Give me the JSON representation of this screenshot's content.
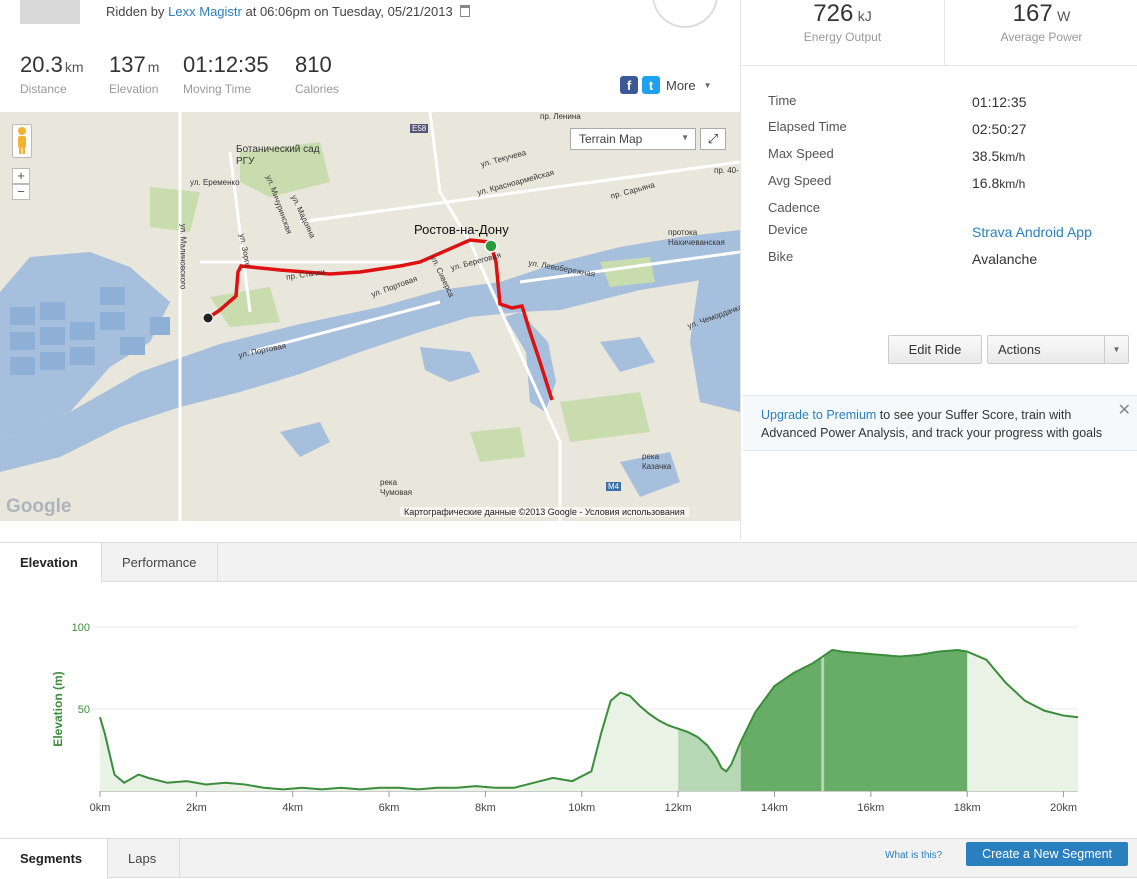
{
  "header": {
    "ridden_prefix": "Ridden by",
    "athlete": "Lexx Magistr",
    "ridden_suffix": "at 06:06pm on Tuesday, 05/21/2013"
  },
  "stats": [
    {
      "value": "20.3",
      "unit": "km",
      "label": "Distance"
    },
    {
      "value": "137",
      "unit": "m",
      "label": "Elevation"
    },
    {
      "value": "01:12:35",
      "unit": "",
      "label": "Moving Time"
    },
    {
      "value": "810",
      "unit": "",
      "label": "Calories"
    }
  ],
  "share": {
    "more": "More"
  },
  "energy": {
    "value": "726",
    "unit": "kJ",
    "label": "Energy Output"
  },
  "power": {
    "value": "167",
    "unit": "W",
    "label": "Average Power"
  },
  "details": [
    {
      "label": "Time",
      "value": "01:12:35",
      "unit": ""
    },
    {
      "label": "Elapsed Time",
      "value": "02:50:27",
      "unit": ""
    },
    {
      "label": "Max Speed",
      "value": "38.5",
      "unit": "km/h"
    },
    {
      "label": "Avg Speed",
      "value": "16.8",
      "unit": "km/h"
    },
    {
      "label": "Cadence",
      "value": "",
      "unit": ""
    },
    {
      "label": "Device",
      "value": "Strava Android App",
      "unit": ""
    },
    {
      "label": "Bike",
      "value": "Avalanche",
      "unit": ""
    }
  ],
  "buttons": {
    "edit": "Edit Ride",
    "actions": "Actions"
  },
  "upgrade": {
    "link": "Upgrade to Premium",
    "text": " to see your Suffer Score, train with Advanced Power Analysis, and track your progress with goals"
  },
  "map": {
    "type_label": "Terrain Map",
    "copyright": "Картографические данные ©2013 Google - Условия использования",
    "logo": "Google",
    "labels": {
      "city": "Ростов-на-Дону",
      "garden": "Ботанический сад РГУ",
      "eremenko": "ул. Еременко",
      "michurin": "ул. Мичуринская",
      "madoyan": "ул. Мадояна",
      "malinovsky": "ул. Малиновского",
      "zorge": "ул. Зорге",
      "stachki": "пр. Стачки",
      "portovaya1": "ул. Портовая",
      "portovaya2": "ул. Портовая",
      "sivers": "ул. Сиверса",
      "beregovaya": "ул. Береговая",
      "levober": "ул. Левобережная",
      "tekucheva": "ул. Текучева",
      "krasnoarm": "ул. Красноармейская",
      "saryana": "пр. Сарьяна",
      "nahich": "протока Нахичеванская",
      "chemordachka": "ул. Чемордачка",
      "kazachka": "река Казачка",
      "chumovaya": "река Чумовая",
      "lenina": "пр. Ленина",
      "e58": "E58",
      "m4": "M4",
      "pr40": "пр. 40-"
    }
  },
  "tabs": {
    "elevation": "Elevation",
    "performance": "Performance",
    "segments": "Segments",
    "laps": "Laps"
  },
  "segment_bar": {
    "what": "What is this?",
    "create": "Create a New Segment"
  },
  "chart_data": {
    "type": "area",
    "ylabel": "Elevation (m)",
    "xlabel": "",
    "yticks": [
      50,
      100
    ],
    "ylim": [
      0,
      100
    ],
    "xticks": [
      "0km",
      "2km",
      "4km",
      "6km",
      "8km",
      "10km",
      "12km",
      "14km",
      "16km",
      "18km",
      "20km"
    ],
    "xlim": [
      0,
      20.3
    ],
    "x": [
      0,
      0.1,
      0.3,
      0.5,
      0.8,
      1.0,
      1.4,
      1.8,
      2.2,
      2.6,
      3.0,
      3.4,
      3.8,
      4.2,
      4.6,
      5.0,
      5.4,
      5.8,
      6.2,
      6.6,
      7.0,
      7.4,
      7.8,
      8.2,
      8.6,
      9.0,
      9.4,
      9.8,
      10.2,
      10.4,
      10.6,
      10.8,
      11.0,
      11.2,
      11.4,
      11.6,
      11.8,
      12.0,
      12.2,
      12.4,
      12.6,
      12.8,
      12.9,
      13.0,
      13.1,
      13.3,
      13.6,
      14.0,
      14.4,
      14.8,
      15.0,
      15.2,
      15.4,
      15.8,
      16.2,
      16.6,
      17.0,
      17.4,
      17.8,
      18.0,
      18.4,
      18.8,
      19.2,
      19.6,
      20.0,
      20.3
    ],
    "values": [
      45,
      35,
      10,
      5,
      10,
      8,
      5,
      6,
      4,
      5,
      4,
      2,
      1,
      2,
      1,
      2,
      1,
      2,
      2,
      1,
      2,
      2,
      3,
      2,
      2,
      5,
      8,
      6,
      12,
      35,
      55,
      60,
      58,
      52,
      47,
      43,
      40,
      38,
      36,
      33,
      28,
      20,
      14,
      12,
      16,
      30,
      48,
      64,
      72,
      78,
      82,
      86,
      85,
      84,
      83,
      82,
      83,
      85,
      86,
      85,
      80,
      66,
      55,
      49,
      46,
      45
    ],
    "highlight_ranges": [
      [
        12.0,
        13.3
      ],
      [
        13.3,
        18.0
      ]
    ],
    "color": "#3b8d3b",
    "grid": true
  }
}
